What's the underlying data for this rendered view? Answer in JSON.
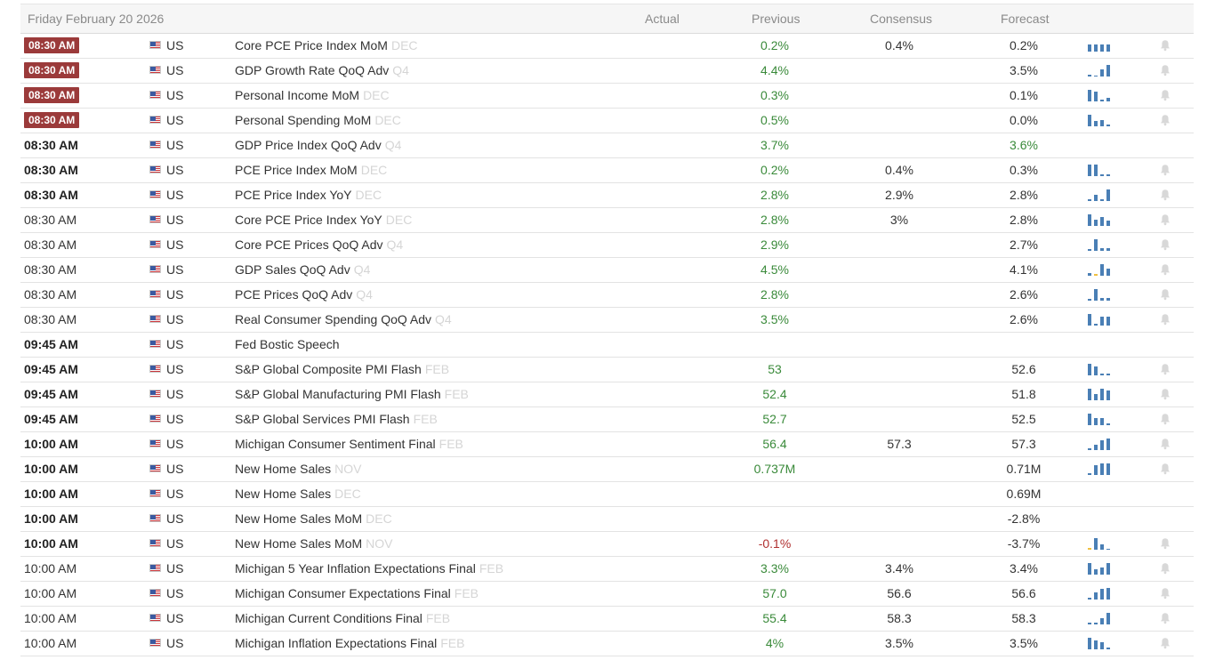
{
  "header": {
    "date": "Friday February 20 2026",
    "actual": "Actual",
    "previous": "Previous",
    "consensus": "Consensus",
    "forecast": "Forecast"
  },
  "colors": {
    "accent_badge": "#9b3a3a",
    "positive": "#3a8a3a",
    "negative": "#b03030",
    "spark_bar": "#4a7fb5",
    "spark_highlight": "#f0c040",
    "bell": "#d8d8d8"
  },
  "rows": [
    {
      "time": "08:30 AM",
      "style": "badge",
      "country": "US",
      "event": "Core PCE Price Index MoM",
      "period": "DEC",
      "actual": "",
      "previous": "0.2%",
      "prev_neg": false,
      "consensus": "0.4%",
      "forecast": "0.2%",
      "fc_green": false,
      "spark": [
        0.55,
        0.55,
        0.55,
        0.55
      ],
      "hl": -1,
      "bell": true
    },
    {
      "time": "08:30 AM",
      "style": "badge",
      "country": "US",
      "event": "GDP Growth Rate QoQ Adv",
      "period": "Q4",
      "actual": "",
      "previous": "4.4%",
      "prev_neg": false,
      "consensus": "",
      "forecast": "3.5%",
      "fc_green": false,
      "spark": [
        0.15,
        0.0,
        0.6,
        0.95
      ],
      "hl": -1,
      "bell": true
    },
    {
      "time": "08:30 AM",
      "style": "badge",
      "country": "US",
      "event": "Personal Income MoM",
      "period": "DEC",
      "actual": "",
      "previous": "0.3%",
      "prev_neg": false,
      "consensus": "",
      "forecast": "0.1%",
      "fc_green": false,
      "spark": [
        0.95,
        0.8,
        0.1,
        0.3
      ],
      "hl": -1,
      "bell": true
    },
    {
      "time": "08:30 AM",
      "style": "badge",
      "country": "US",
      "event": "Personal Spending MoM",
      "period": "DEC",
      "actual": "",
      "previous": "0.5%",
      "prev_neg": false,
      "consensus": "",
      "forecast": "0.0%",
      "fc_green": false,
      "spark": [
        0.95,
        0.4,
        0.5,
        0.1
      ],
      "hl": -1,
      "bell": true
    },
    {
      "time": "08:30 AM",
      "style": "bold",
      "country": "US",
      "event": "GDP Price Index QoQ Adv",
      "period": "Q4",
      "actual": "",
      "previous": "3.7%",
      "prev_neg": false,
      "consensus": "",
      "forecast": "3.6%",
      "fc_green": true,
      "spark": [],
      "hl": -1,
      "bell": false
    },
    {
      "time": "08:30 AM",
      "style": "bold",
      "country": "US",
      "event": "PCE Price Index MoM",
      "period": "DEC",
      "actual": "",
      "previous": "0.2%",
      "prev_neg": false,
      "consensus": "0.4%",
      "forecast": "0.3%",
      "fc_green": false,
      "spark": [
        0.95,
        0.9,
        0.1,
        0.1
      ],
      "hl": -1,
      "bell": true
    },
    {
      "time": "08:30 AM",
      "style": "bold",
      "country": "US",
      "event": "PCE Price Index YoY",
      "period": "DEC",
      "actual": "",
      "previous": "2.8%",
      "prev_neg": false,
      "consensus": "2.9%",
      "forecast": "2.8%",
      "fc_green": false,
      "spark": [
        0.1,
        0.5,
        0.1,
        0.95
      ],
      "hl": -1,
      "bell": true
    },
    {
      "time": "08:30 AM",
      "style": "plain",
      "country": "US",
      "event": "Core PCE Price Index YoY",
      "period": "DEC",
      "actual": "",
      "previous": "2.8%",
      "prev_neg": false,
      "consensus": "3%",
      "forecast": "2.8%",
      "fc_green": false,
      "spark": [
        0.95,
        0.5,
        0.7,
        0.45
      ],
      "hl": -1,
      "bell": true
    },
    {
      "time": "08:30 AM",
      "style": "plain",
      "country": "US",
      "event": "Core PCE Prices QoQ Adv",
      "period": "Q4",
      "actual": "",
      "previous": "2.9%",
      "prev_neg": false,
      "consensus": "",
      "forecast": "2.7%",
      "fc_green": false,
      "spark": [
        0.1,
        0.95,
        0.2,
        0.2
      ],
      "hl": -1,
      "bell": true
    },
    {
      "time": "08:30 AM",
      "style": "plain",
      "country": "US",
      "event": "GDP Sales QoQ Adv",
      "period": "Q4",
      "actual": "",
      "previous": "4.5%",
      "prev_neg": false,
      "consensus": "",
      "forecast": "4.1%",
      "fc_green": false,
      "spark": [
        0.2,
        0.15,
        0.95,
        0.6
      ],
      "hl": 1,
      "bell": true
    },
    {
      "time": "08:30 AM",
      "style": "plain",
      "country": "US",
      "event": "PCE Prices QoQ Adv",
      "period": "Q4",
      "actual": "",
      "previous": "2.8%",
      "prev_neg": false,
      "consensus": "",
      "forecast": "2.6%",
      "fc_green": false,
      "spark": [
        0.1,
        0.95,
        0.2,
        0.2
      ],
      "hl": -1,
      "bell": true
    },
    {
      "time": "08:30 AM",
      "style": "plain",
      "country": "US",
      "event": "Real Consumer Spending QoQ Adv",
      "period": "Q4",
      "actual": "",
      "previous": "3.5%",
      "prev_neg": false,
      "consensus": "",
      "forecast": "2.6%",
      "fc_green": false,
      "spark": [
        0.95,
        0.1,
        0.7,
        0.7
      ],
      "hl": -1,
      "bell": true
    },
    {
      "time": "09:45 AM",
      "style": "bold",
      "country": "US",
      "event": "Fed Bostic Speech",
      "period": "",
      "actual": "",
      "previous": "",
      "prev_neg": false,
      "consensus": "",
      "forecast": "",
      "fc_green": false,
      "spark": [],
      "hl": -1,
      "bell": false
    },
    {
      "time": "09:45 AM",
      "style": "bold",
      "country": "US",
      "event": "S&P Global Composite PMI Flash",
      "period": "FEB",
      "actual": "",
      "previous": "53",
      "prev_neg": false,
      "consensus": "",
      "forecast": "52.6",
      "fc_green": false,
      "spark": [
        0.95,
        0.7,
        0.1,
        0.1
      ],
      "hl": -1,
      "bell": true
    },
    {
      "time": "09:45 AM",
      "style": "bold",
      "country": "US",
      "event": "S&P Global Manufacturing PMI Flash",
      "period": "FEB",
      "actual": "",
      "previous": "52.4",
      "prev_neg": false,
      "consensus": "",
      "forecast": "51.8",
      "fc_green": false,
      "spark": [
        0.95,
        0.5,
        0.95,
        0.8
      ],
      "hl": -1,
      "bell": true
    },
    {
      "time": "09:45 AM",
      "style": "bold",
      "country": "US",
      "event": "S&P Global Services PMI Flash",
      "period": "FEB",
      "actual": "",
      "previous": "52.7",
      "prev_neg": false,
      "consensus": "",
      "forecast": "52.5",
      "fc_green": false,
      "spark": [
        0.95,
        0.6,
        0.6,
        0.1
      ],
      "hl": -1,
      "bell": true
    },
    {
      "time": "10:00 AM",
      "style": "bold",
      "country": "US",
      "event": "Michigan Consumer Sentiment Final",
      "period": "FEB",
      "actual": "",
      "previous": "56.4",
      "prev_neg": false,
      "consensus": "57.3",
      "forecast": "57.3",
      "fc_green": false,
      "spark": [
        0.1,
        0.45,
        0.75,
        0.95
      ],
      "hl": -1,
      "bell": true
    },
    {
      "time": "10:00 AM",
      "style": "bold",
      "country": "US",
      "event": "New Home Sales",
      "period": "NOV",
      "actual": "",
      "previous": "0.737M",
      "prev_neg": false,
      "consensus": "",
      "forecast": "0.71M",
      "fc_green": false,
      "spark": [
        0.1,
        0.75,
        0.9,
        0.95
      ],
      "hl": -1,
      "bell": true
    },
    {
      "time": "10:00 AM",
      "style": "bold",
      "country": "US",
      "event": "New Home Sales",
      "period": "DEC",
      "actual": "",
      "previous": "",
      "prev_neg": false,
      "consensus": "",
      "forecast": "0.69M",
      "fc_green": false,
      "spark": [],
      "hl": -1,
      "bell": false
    },
    {
      "time": "10:00 AM",
      "style": "bold",
      "country": "US",
      "event": "New Home Sales MoM",
      "period": "DEC",
      "actual": "",
      "previous": "",
      "prev_neg": false,
      "consensus": "",
      "forecast": "-2.8%",
      "fc_green": false,
      "spark": [],
      "hl": -1,
      "bell": false
    },
    {
      "time": "10:00 AM",
      "style": "bold",
      "country": "US",
      "event": "New Home Sales MoM",
      "period": "NOV",
      "actual": "",
      "previous": "-0.1%",
      "prev_neg": true,
      "consensus": "",
      "forecast": "-3.7%",
      "fc_green": false,
      "spark": [
        0.15,
        0.95,
        0.4,
        0.0
      ],
      "hl": 0,
      "bell": true
    },
    {
      "time": "10:00 AM",
      "style": "plain",
      "country": "US",
      "event": "Michigan 5 Year Inflation Expectations Final",
      "period": "FEB",
      "actual": "",
      "previous": "3.3%",
      "prev_neg": false,
      "consensus": "3.4%",
      "forecast": "3.4%",
      "fc_green": false,
      "spark": [
        0.95,
        0.4,
        0.6,
        0.95
      ],
      "hl": -1,
      "bell": true
    },
    {
      "time": "10:00 AM",
      "style": "plain",
      "country": "US",
      "event": "Michigan Consumer Expectations Final",
      "period": "FEB",
      "actual": "",
      "previous": "57.0",
      "prev_neg": false,
      "consensus": "56.6",
      "forecast": "56.6",
      "fc_green": false,
      "spark": [
        0.1,
        0.55,
        0.85,
        0.95
      ],
      "hl": -1,
      "bell": true
    },
    {
      "time": "10:00 AM",
      "style": "plain",
      "country": "US",
      "event": "Michigan Current Conditions Final",
      "period": "FEB",
      "actual": "",
      "previous": "55.4",
      "prev_neg": false,
      "consensus": "58.3",
      "forecast": "58.3",
      "fc_green": false,
      "spark": [
        0.1,
        0.1,
        0.5,
        0.95
      ],
      "hl": -1,
      "bell": true
    },
    {
      "time": "10:00 AM",
      "style": "plain",
      "country": "US",
      "event": "Michigan Inflation Expectations Final",
      "period": "FEB",
      "actual": "",
      "previous": "4%",
      "prev_neg": false,
      "consensus": "3.5%",
      "forecast": "3.5%",
      "fc_green": false,
      "spark": [
        0.95,
        0.7,
        0.55,
        0.1
      ],
      "hl": -1,
      "bell": true
    }
  ]
}
